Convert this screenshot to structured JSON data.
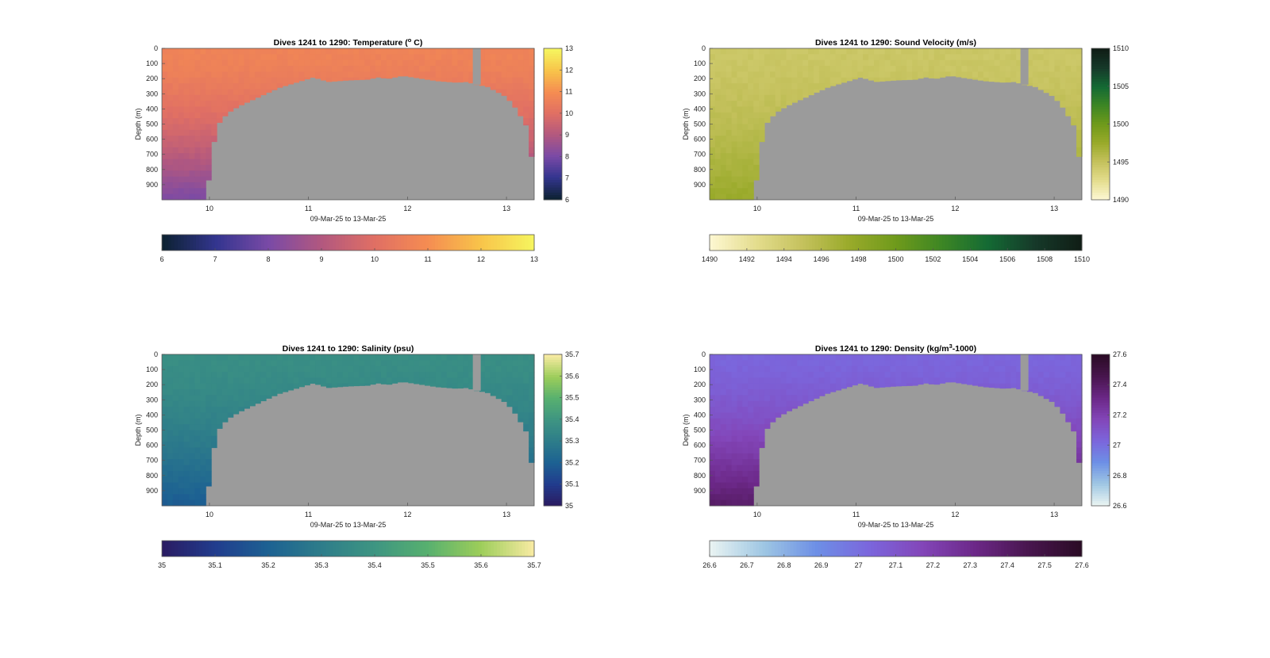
{
  "chart_data": [
    {
      "type": "heatmap",
      "title": "Dives 1241 to 1290: Temperature (° C)",
      "title_parts": {
        "pre": "Dives 1241 to 1290: Temperature (",
        "sup": "o",
        "post": " C)"
      },
      "xlabel": "09-Mar-25 to 13-Mar-25",
      "ylabel": "Depth (m)",
      "xlim": [
        9.52,
        13.28
      ],
      "ylim": [
        0,
        1000
      ],
      "x_ticks": [
        "10",
        "11",
        "12",
        "13"
      ],
      "y_ticks": [
        "0",
        "100",
        "200",
        "300",
        "400",
        "500",
        "600",
        "700",
        "800",
        "900"
      ],
      "colormap": [
        "#0d2233",
        "#33358f",
        "#7a4aa6",
        "#b2587f",
        "#e06f64",
        "#f58c52",
        "#f8c34a",
        "#f6f45e"
      ],
      "clim": [
        6,
        13
      ],
      "colorbar_ticks": [
        "6",
        "7",
        "8",
        "9",
        "10",
        "11",
        "12",
        "13"
      ],
      "h_colorbar_ticks": [
        "6",
        "7",
        "8",
        "9",
        "10",
        "11",
        "12",
        "13"
      ],
      "surface_value": 10.7,
      "deep_value": 8.0
    },
    {
      "type": "heatmap",
      "title": "Dives 1241 to 1290: Sound Velocity (m/s)",
      "xlabel": "09-Mar-25 to 13-Mar-25",
      "ylabel": "Depth (m)",
      "xlim": [
        9.52,
        13.28
      ],
      "ylim": [
        0,
        1000
      ],
      "x_ticks": [
        "10",
        "11",
        "12",
        "13"
      ],
      "y_ticks": [
        "0",
        "100",
        "200",
        "300",
        "400",
        "500",
        "600",
        "700",
        "800",
        "900"
      ],
      "colormap": [
        "#fdf7d0",
        "#e3dc8c",
        "#c4c15c",
        "#99aa2a",
        "#6f9a1b",
        "#3d8624",
        "#146a34",
        "#163a2a",
        "#101e16"
      ],
      "clim": [
        1490,
        1510
      ],
      "colorbar_ticks": [
        "1490",
        "1495",
        "1500",
        "1505",
        "1510"
      ],
      "h_colorbar_ticks": [
        "1490",
        "1492",
        "1494",
        "1496",
        "1498",
        "1500",
        "1502",
        "1504",
        "1506",
        "1508",
        "1510"
      ],
      "surface_value": 1494.5,
      "deep_value": 1497.5
    },
    {
      "type": "heatmap",
      "title": "Dives 1241 to 1290: Salinity (psu)",
      "xlabel": "09-Mar-25 to 13-Mar-25",
      "ylabel": "Depth (m)",
      "xlim": [
        9.52,
        13.28
      ],
      "ylim": [
        0,
        1000
      ],
      "x_ticks": [
        "10",
        "11",
        "12",
        "13"
      ],
      "y_ticks": [
        "0",
        "100",
        "200",
        "300",
        "400",
        "500",
        "600",
        "700",
        "800",
        "900"
      ],
      "colormap": [
        "#2a1c63",
        "#213d8e",
        "#1d6292",
        "#2e7d8a",
        "#3e9582",
        "#57b06f",
        "#9ccd5a",
        "#f6eaa1"
      ],
      "clim": [
        35,
        35.7
      ],
      "colorbar_ticks": [
        "35",
        "35.1",
        "35.2",
        "35.3",
        "35.4",
        "35.5",
        "35.6",
        "35.7"
      ],
      "h_colorbar_ticks": [
        "35",
        "35.1",
        "35.2",
        "35.3",
        "35.4",
        "35.5",
        "35.6",
        "35.7"
      ],
      "surface_value": 35.37,
      "deep_value": 35.18
    },
    {
      "type": "heatmap",
      "title": "Dives 1241 to 1290: Density (kg/m³-1000)",
      "title_parts": {
        "pre": "Dives 1241 to 1290: Density (kg/m",
        "sup": "3",
        "post": "-1000)"
      },
      "xlabel": "09-Mar-25 to 13-Mar-25",
      "ylabel": "Depth (m)",
      "xlim": [
        9.52,
        13.28
      ],
      "ylim": [
        0,
        1000
      ],
      "x_ticks": [
        "10",
        "11",
        "12",
        "13"
      ],
      "y_ticks": [
        "0",
        "100",
        "200",
        "300",
        "400",
        "500",
        "600",
        "700",
        "800",
        "900"
      ],
      "colormap": [
        "#e8f3f2",
        "#9ec6e3",
        "#6d8fe6",
        "#7b66dc",
        "#8346b9",
        "#6c2888",
        "#49164f",
        "#2b0b26"
      ],
      "clim": [
        26.6,
        27.6
      ],
      "colorbar_ticks": [
        "26.6",
        "26.8",
        "27",
        "27.2",
        "27.4",
        "27.6"
      ],
      "h_colorbar_ticks": [
        "26.6",
        "26.7",
        "26.8",
        "26.9",
        "27",
        "27.1",
        "27.2",
        "27.3",
        "27.4",
        "27.5",
        "27.6"
      ],
      "surface_value": 27.03,
      "deep_value": 27.4
    }
  ],
  "bathymetry": {
    "x": [
      9.5,
      9.95,
      9.97,
      10.0,
      10.05,
      10.1,
      10.15,
      10.2,
      10.3,
      10.4,
      10.5,
      10.6,
      10.7,
      10.8,
      10.9,
      11.0,
      11.05,
      11.2,
      11.4,
      11.6,
      11.7,
      11.8,
      11.95,
      12.1,
      12.3,
      12.5,
      12.6,
      12.7,
      12.8,
      12.9,
      13.0,
      13.1,
      13.2,
      13.3
    ],
    "depth": [
      1000,
      1000,
      870,
      870,
      590,
      490,
      450,
      420,
      380,
      350,
      320,
      290,
      260,
      240,
      220,
      200,
      190,
      220,
      210,
      205,
      190,
      200,
      180,
      195,
      215,
      225,
      220,
      240,
      250,
      285,
      320,
      400,
      510,
      900
    ]
  }
}
